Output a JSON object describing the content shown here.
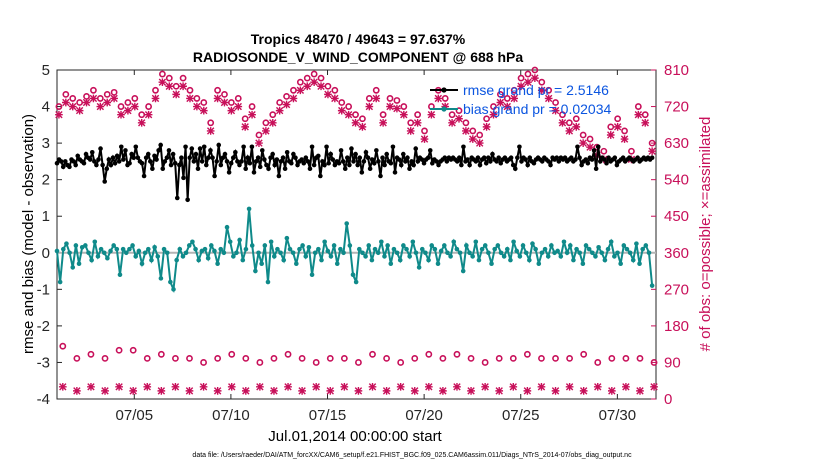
{
  "chart_data": {
    "type": "line",
    "title": "Tropics 48470 / 49643 = 97.637%",
    "subtitle": "RADIOSONDE_V_WIND_COMPONENT @ 688 hPa",
    "xlabel": "Jul.01,2014 00:00:00 start",
    "ylabel": "rmse and bias (model - observation)",
    "y2label": "# of obs: o=possible; ×=assimilated",
    "footnote": "data file: /Users/raeder/DAI/ATM_forcXX/CAM6_setup/f.e21.FHIST_BGC.f09_025.CAM6assim.011/Diags_NTrS_2014-07/obs_diag_output.nc",
    "xlim": [
      1,
      32
    ],
    "ylim": [
      -4,
      5
    ],
    "y2lim": [
      0,
      810
    ],
    "x_ticks": [
      5,
      10,
      15,
      20,
      25,
      30
    ],
    "x_tick_labels": [
      "07/05",
      "07/10",
      "07/15",
      "07/20",
      "07/25",
      "07/30"
    ],
    "y_ticks": [
      -4,
      -3,
      -2,
      -1,
      0,
      1,
      2,
      3,
      4,
      5
    ],
    "y_tick_labels": [
      "-4",
      "-3",
      "-2",
      "-1",
      "0",
      "1",
      "2",
      "3",
      "4",
      "5"
    ],
    "y2_ticks": [
      0,
      90,
      180,
      270,
      360,
      450,
      540,
      630,
      720,
      810
    ],
    "y2_tick_labels": [
      "0",
      "90",
      "180",
      "270",
      "360",
      "450",
      "540",
      "630",
      "720",
      "810"
    ],
    "zero_line": 0,
    "legend": [
      {
        "label": "rmse grand pr = 2.5146",
        "color": "#000000"
      },
      {
        "label": "bias grand pr = 0.02034",
        "color": "#0f8a8a"
      }
    ],
    "series": [
      {
        "name": "rmse",
        "color": "#000000",
        "axis": "left",
        "values": [
          2.45,
          2.55,
          2.5,
          2.35,
          2.5,
          2.4,
          2.35,
          2.55,
          2.5,
          2.4,
          2.65,
          2.55,
          2.5,
          2.45,
          2.7,
          2.6,
          2.55,
          2.75,
          2.5,
          2.4,
          2.55,
          2.85,
          2.4,
          1.95,
          2.3,
          2.55,
          2.4,
          2.6,
          2.45,
          2.65,
          2.5,
          2.9,
          2.55,
          2.8,
          2.4,
          2.45,
          2.7,
          2.6,
          2.9,
          2.6,
          2.5,
          2.45,
          2.1,
          2.6,
          2.7,
          2.5,
          2.3,
          2.65,
          2.55,
          2.8,
          2.95,
          2.3,
          2.5,
          2.6,
          2.8,
          2.4,
          2.7,
          2.45,
          1.5,
          2.4,
          2.6,
          2.05,
          2.9,
          1.45,
          2.6,
          2.85,
          2.5,
          2.7,
          2.3,
          2.85,
          2.5,
          2.9,
          2.4,
          2.6,
          2.8,
          2.6,
          2.1,
          2.5,
          2.95,
          2.4,
          2.6,
          2.7,
          2.5,
          2.2,
          2.45,
          2.6,
          2.75,
          2.5,
          2.4,
          2.5,
          2.9,
          2.3,
          2.6,
          2.45,
          2.9,
          2.2,
          2.5,
          2.6,
          2.35,
          2.8,
          2.55,
          2.4,
          2.3,
          2.6,
          2.7,
          2.4,
          2.55,
          2.1,
          2.5,
          2.6,
          2.3,
          2.75,
          2.5,
          2.45,
          2.7,
          2.6,
          2.4,
          2.5,
          2.55,
          2.45,
          2.6,
          2.5,
          2.3,
          2.9,
          2.4,
          2.6,
          2.65,
          2.1,
          2.5,
          2.4,
          2.9,
          2.45,
          2.7,
          2.55,
          2.4,
          2.5,
          2.45,
          2.8,
          2.5,
          2.3,
          2.6,
          2.4,
          2.85,
          2.5,
          2.7,
          2.4,
          2.6,
          2.2,
          2.5,
          2.75,
          2.6,
          2.3,
          2.55,
          2.45,
          2.8,
          2.5,
          2.1,
          2.6,
          2.4,
          2.7,
          2.5,
          2.45,
          2.9,
          2.2,
          2.6,
          2.55,
          2.4,
          2.7,
          2.5,
          2.6,
          2.3,
          2.5,
          2.4,
          2.85,
          2.5,
          2.6,
          2.55,
          2.45,
          2.55,
          2.6,
          2.8,
          2.45,
          2.55,
          2.5,
          2.4,
          2.5,
          2.55,
          2.6,
          2.5,
          2.6,
          2.55,
          2.6,
          2.55,
          2.5,
          2.6,
          2.4,
          2.9,
          2.5,
          2.55,
          2.4,
          2.6,
          2.55,
          2.5,
          2.6,
          2.4,
          2.55,
          2.6,
          2.45,
          2.6,
          2.5,
          2.7,
          2.55,
          2.5,
          2.6,
          2.45,
          2.55,
          2.6,
          2.5,
          2.55,
          2.6,
          2.4,
          2.3,
          2.6,
          2.9,
          2.5,
          2.6,
          2.55,
          2.4,
          2.6,
          2.5,
          2.45,
          2.55,
          2.6,
          2.55,
          2.5,
          2.6,
          2.55,
          2.5,
          2.4,
          2.6,
          2.55,
          2.6,
          2.5,
          2.6,
          2.55,
          2.6,
          2.5,
          2.55,
          2.6,
          2.5,
          2.55,
          2.9,
          2.6,
          2.4,
          2.5,
          2.55,
          2.45,
          2.6,
          2.55,
          2.8,
          2.3,
          2.9,
          2.5,
          2.6,
          2.55,
          2.45,
          2.6,
          2.5,
          2.55,
          2.6,
          2.4,
          2.5,
          2.55,
          2.6,
          2.5,
          2.55,
          2.6,
          2.55,
          2.5,
          2.55,
          2.6,
          2.5,
          2.55,
          2.6,
          2.55,
          2.6,
          2.55,
          2.6
        ]
      },
      {
        "name": "bias",
        "color": "#0f8a8a",
        "axis": "left",
        "values": [
          0.05,
          -0.8,
          0.1,
          0.25,
          0.0,
          -0.4,
          0.2,
          -0.3,
          0.15,
          0.2,
          0.0,
          -0.2,
          0.3,
          -0.1,
          0.1,
          0.0,
          -0.15,
          0.05,
          0.2,
          0.1,
          -0.6,
          0.1,
          0.0,
          0.1,
          0.2,
          -0.1,
          0.05,
          -0.3,
          0.0,
          0.1,
          -0.2,
          0.15,
          -0.1,
          -0.7,
          0.1,
          0.0,
          -0.8,
          -1.0,
          -0.2,
          0.1,
          -0.1,
          0.0,
          0.2,
          0.3,
          0.1,
          -0.2,
          0.05,
          0.1,
          -0.15,
          0.2,
          0.05,
          -0.3,
          0.1,
          0.0,
          0.7,
          0.3,
          -0.1,
          0.0,
          0.35,
          -0.2,
          0.1,
          1.2,
          0.2,
          -0.5,
          0.0,
          -0.3,
          0.2,
          -0.8,
          0.3,
          -0.1,
          0.1,
          0.0,
          -0.2,
          0.4,
          0.1,
          0.0,
          -0.3,
          0.1,
          0.2,
          -0.1,
          0.15,
          -0.6,
          0.0,
          0.1,
          -0.2,
          0.3,
          0.05,
          -0.1,
          0.2,
          -0.3,
          0.1,
          0.0,
          0.8,
          0.2,
          -0.6,
          -0.8,
          0.1,
          0.0,
          -0.1,
          0.2,
          -0.2,
          0.1,
          0.0,
          0.3,
          -0.1,
          0.2,
          -0.3,
          0.1,
          0.0,
          -0.2,
          0.2,
          0.1,
          -0.1,
          0.3,
          0.0,
          -0.4,
          0.1,
          0.0,
          -0.2,
          0.2,
          0.1,
          -0.3,
          0.05,
          0.2,
          0.0,
          -0.1,
          0.3,
          0.1,
          0.0,
          -0.5,
          0.2,
          0.0,
          -0.1,
          0.3,
          -0.2,
          0.1,
          0.2,
          0.0,
          -0.3,
          0.1,
          0.2,
          0.0,
          -0.1,
          0.1,
          -0.2,
          0.3,
          0.05,
          -0.1,
          0.2,
          0.0,
          -0.2,
          0.25,
          0.1,
          -0.3,
          0.0,
          0.1,
          -0.1,
          0.2,
          0.0,
          0.05,
          -0.1,
          0.3,
          0.0,
          0.2,
          -0.2,
          0.1,
          0.0,
          -0.3,
          0.2,
          0.1,
          0.0,
          -0.1,
          0.15,
          0.0,
          -0.2,
          0.1,
          0.3,
          -0.1,
          0.0,
          -0.3,
          0.2,
          0.1,
          0.0,
          -0.2,
          0.25,
          -0.3,
          0.1,
          0.2,
          0.0,
          -0.9
        ]
      }
    ],
    "obs_possible": {
      "axis": "right",
      "color": "#c8105a",
      "marker": "o",
      "values": [
        720,
        750,
        740,
        730,
        745,
        760,
        740,
        750,
        755,
        720,
        730,
        740,
        700,
        720,
        760,
        800,
        790,
        770,
        790,
        760,
        740,
        730,
        680,
        760,
        750,
        730,
        740,
        690,
        720,
        650,
        680,
        700,
        730,
        745,
        760,
        780,
        790,
        800,
        790,
        770,
        760,
        730,
        720,
        700,
        690,
        740,
        760,
        700,
        740,
        735,
        720,
        680,
        700,
        660,
        720,
        760,
        740,
        700,
        710,
        680,
        660,
        650,
        690,
        720,
        750,
        740,
        760,
        790,
        800,
        810,
        780,
        760,
        730,
        700,
        680,
        690,
        650,
        640,
        620,
        610,
        670,
        690,
        660,
        610,
        720,
        700,
        630
      ],
      "low_values": [
        130,
        100,
        110,
        100,
        120,
        120,
        100,
        110,
        100,
        100,
        90,
        100,
        110,
        100,
        90,
        100,
        110,
        100,
        90,
        100,
        100,
        90,
        110,
        100,
        90,
        100,
        110,
        100,
        110,
        100,
        90,
        100,
        100,
        110,
        100,
        100,
        100,
        110,
        90,
        100,
        100,
        100,
        90
      ]
    },
    "obs_assimilated": {
      "axis": "right",
      "color": "#c8105a",
      "marker": "x",
      "values": [
        700,
        730,
        720,
        710,
        730,
        740,
        720,
        730,
        740,
        700,
        710,
        720,
        680,
        700,
        740,
        780,
        770,
        750,
        770,
        740,
        720,
        710,
        660,
        740,
        730,
        710,
        720,
        670,
        700,
        630,
        660,
        680,
        710,
        725,
        740,
        760,
        770,
        780,
        770,
        750,
        740,
        710,
        700,
        680,
        670,
        720,
        740,
        680,
        720,
        715,
        700,
        660,
        680,
        640,
        700,
        740,
        720,
        680,
        690,
        660,
        640,
        630,
        670,
        700,
        730,
        720,
        740,
        770,
        780,
        790,
        760,
        740,
        710,
        680,
        660,
        670,
        630,
        620,
        600,
        590,
        650,
        670,
        640,
        590,
        700,
        680,
        610
      ],
      "low_values": [
        30,
        20,
        30,
        20,
        30,
        20,
        30,
        20,
        30,
        20,
        30,
        20,
        30,
        20,
        30,
        20,
        30,
        20,
        30,
        20,
        30,
        20,
        30,
        20,
        30,
        20,
        30,
        20,
        30,
        20,
        30,
        20,
        30,
        20,
        30,
        20,
        30,
        20,
        30,
        20,
        30,
        20,
        30
      ]
    }
  }
}
